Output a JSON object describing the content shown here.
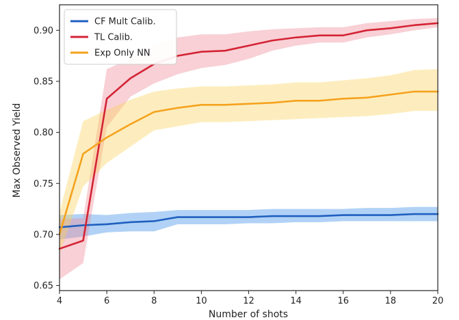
{
  "chart_data": {
    "type": "line",
    "title": "",
    "xlabel": "Number of shots",
    "ylabel": "Max Observed Yield",
    "xlim": [
      4,
      20
    ],
    "ylim": [
      0.645,
      0.925
    ],
    "xticks": [
      4,
      6,
      8,
      10,
      12,
      14,
      16,
      18,
      20
    ],
    "yticks": [
      0.65,
      0.7,
      0.75,
      0.8,
      0.85,
      0.9
    ],
    "grid": false,
    "legend": "top-left",
    "x": [
      4,
      5,
      6,
      7,
      8,
      9,
      10,
      11,
      12,
      13,
      14,
      15,
      16,
      17,
      18,
      19,
      20
    ],
    "series": [
      {
        "name": "CF Mult Calib.",
        "color": "#1f5fbf",
        "band_color": "#3d8ee8",
        "values": [
          0.707,
          0.709,
          0.71,
          0.712,
          0.713,
          0.717,
          0.717,
          0.717,
          0.717,
          0.718,
          0.718,
          0.718,
          0.719,
          0.719,
          0.719,
          0.72,
          0.72
        ],
        "lower": [
          0.695,
          0.698,
          0.702,
          0.703,
          0.703,
          0.71,
          0.71,
          0.71,
          0.711,
          0.711,
          0.712,
          0.712,
          0.713,
          0.713,
          0.713,
          0.713,
          0.713
        ],
        "upper": [
          0.719,
          0.72,
          0.719,
          0.721,
          0.722,
          0.724,
          0.724,
          0.724,
          0.724,
          0.725,
          0.725,
          0.725,
          0.725,
          0.726,
          0.726,
          0.727,
          0.727
        ]
      },
      {
        "name": "TL Calib.",
        "color": "#d42335",
        "band_color": "#ee8a95",
        "values": [
          0.686,
          0.694,
          0.833,
          0.853,
          0.867,
          0.875,
          0.879,
          0.88,
          0.885,
          0.89,
          0.893,
          0.895,
          0.895,
          0.9,
          0.902,
          0.905,
          0.907
        ],
        "lower": [
          0.656,
          0.672,
          0.805,
          0.835,
          0.848,
          0.857,
          0.863,
          0.866,
          0.872,
          0.88,
          0.885,
          0.888,
          0.888,
          0.893,
          0.896,
          0.9,
          0.903
        ],
        "upper": [
          0.715,
          0.716,
          0.862,
          0.872,
          0.885,
          0.893,
          0.896,
          0.896,
          0.899,
          0.901,
          0.902,
          0.903,
          0.903,
          0.907,
          0.909,
          0.911,
          0.912
        ]
      },
      {
        "name": "Exp Only NN",
        "color": "#f5a21d",
        "band_color": "#f9d25c",
        "values": [
          0.7,
          0.779,
          0.795,
          0.808,
          0.82,
          0.824,
          0.827,
          0.827,
          0.828,
          0.829,
          0.831,
          0.831,
          0.833,
          0.834,
          0.837,
          0.84,
          0.84
        ],
        "lower": [
          0.681,
          0.747,
          0.77,
          0.786,
          0.802,
          0.806,
          0.81,
          0.81,
          0.811,
          0.812,
          0.813,
          0.814,
          0.815,
          0.816,
          0.818,
          0.821,
          0.821
        ],
        "upper": [
          0.722,
          0.811,
          0.822,
          0.832,
          0.84,
          0.843,
          0.845,
          0.845,
          0.846,
          0.847,
          0.849,
          0.849,
          0.851,
          0.853,
          0.856,
          0.861,
          0.862
        ]
      }
    ]
  }
}
